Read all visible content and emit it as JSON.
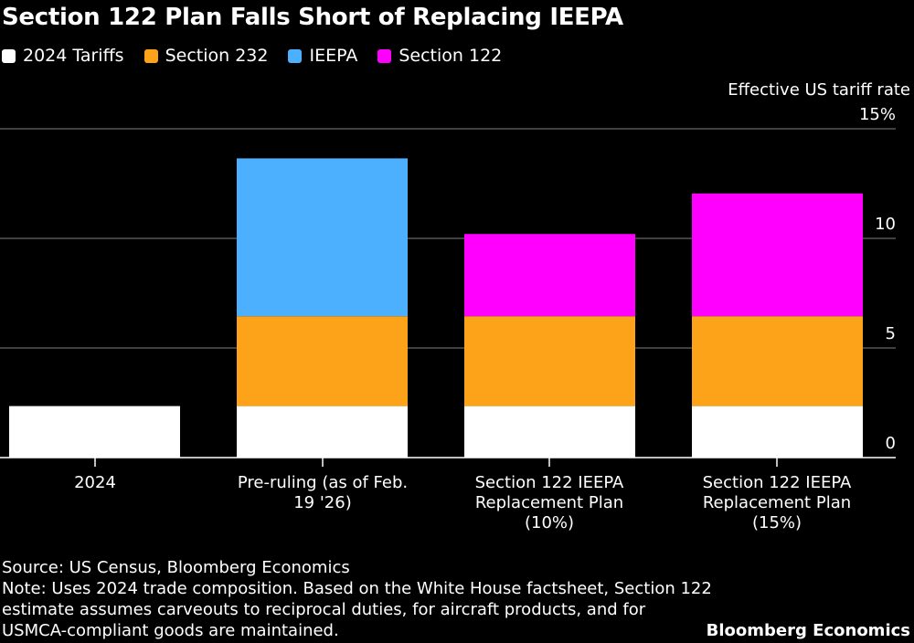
{
  "title": "Section 122 Plan Falls Short of Replacing IEEPA",
  "chart_data": {
    "type": "stacked-bar",
    "title": "Section 122 Plan Falls Short of Replacing IEEPA",
    "ylabel": "Effective US tariff rate",
    "ylim": [
      0,
      15
    ],
    "yticks": [
      "0",
      "5",
      "10",
      "15%"
    ],
    "grid": true,
    "legend_position": "top-left",
    "categories": [
      "2024",
      "Pre-ruling (as of Feb. 19 '26)",
      "Section 122 IEEPA Replacement Plan (10%)",
      "Section 122 IEEPA Replacement Plan (15%)"
    ],
    "series": [
      {
        "name": "2024 Tariffs",
        "color": "#ffffff",
        "values": [
          2.35,
          2.35,
          2.35,
          2.35
        ]
      },
      {
        "name": "Section 232",
        "color": "#fca31a",
        "values": [
          0,
          4.1,
          4.1,
          4.1
        ]
      },
      {
        "name": "IEEPA",
        "color": "#4db0ff",
        "values": [
          0,
          7.2,
          0,
          0
        ]
      },
      {
        "name": "Section 122",
        "color": "#ff00ff",
        "values": [
          0,
          0,
          3.75,
          5.6
        ]
      }
    ]
  },
  "source": "Source: US Census, Bloomberg Economics",
  "note": "Note: Uses 2024 trade composition. Based on the White House factsheet, Section 122 estimate assumes carveouts to reciprocal duties, for aircraft products, and for USMCA-compliant goods are maintained.",
  "brand": "Bloomberg Economics"
}
